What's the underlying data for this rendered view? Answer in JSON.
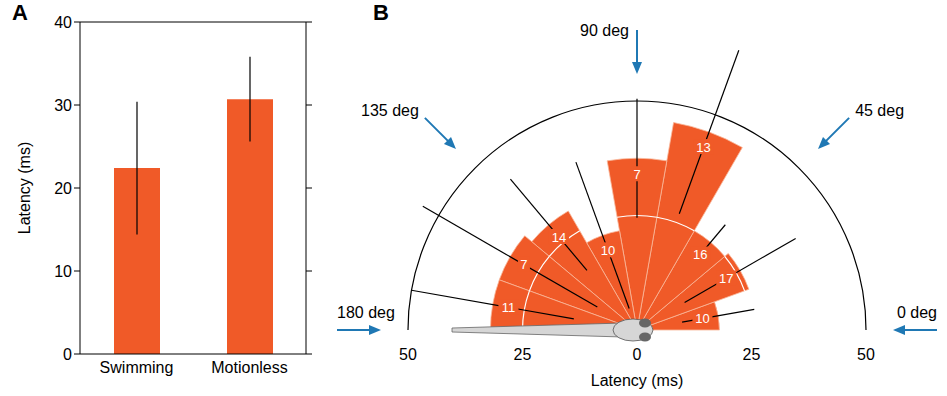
{
  "chart_data": [
    {
      "panel_label": "A",
      "type": "bar",
      "categories": [
        "Swimming",
        "Motionless"
      ],
      "values": [
        22.4,
        30.7
      ],
      "errors": [
        8.0,
        5.1
      ],
      "color": "#f05a28",
      "y_label": "Latency (ms)",
      "ylim": [
        0,
        40
      ],
      "yticks": [
        0,
        10,
        20,
        30,
        40
      ]
    },
    {
      "panel_label": "B",
      "type": "polar_bar",
      "bins": [
        0,
        20,
        40,
        60,
        80,
        100,
        120,
        140,
        160,
        180
      ],
      "values": [
        18,
        26,
        25,
        46,
        37.5,
        22,
        30,
        32,
        32
      ],
      "errors": [
        8,
        14,
        5,
        19,
        13,
        17,
        13,
        22,
        18
      ],
      "counts": [
        10,
        17,
        16,
        13,
        7,
        10,
        14,
        7,
        11
      ],
      "color": "#f05a28",
      "r_label": "Latency (ms)",
      "rlim": [
        0,
        50
      ],
      "rticks": [
        0,
        25,
        50
      ],
      "angle_ticks": [
        {
          "value": 0,
          "label": "0 deg"
        },
        {
          "value": 45,
          "label": "45 deg"
        },
        {
          "value": 90,
          "label": "90 deg"
        },
        {
          "value": 135,
          "label": "135 deg"
        },
        {
          "value": 180,
          "label": "180 deg"
        }
      ]
    }
  ]
}
